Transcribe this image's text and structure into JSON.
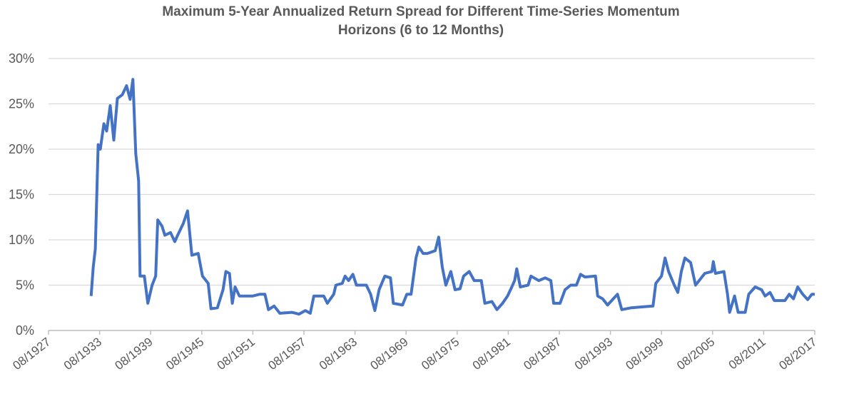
{
  "chart_data": {
    "type": "line",
    "title": "Maximum 5-Year Annualized Return Spread for Different Time-Series Momentum",
    "subtitle": "Horizons (6 to 12 Months)",
    "x": [
      "08/1932",
      "11/1932",
      "02/1933",
      "06/1933",
      "09/1933",
      "02/1934",
      "06/1934",
      "11/1934",
      "04/1935",
      "09/1935",
      "04/1936",
      "10/1936",
      "03/1937",
      "07/1937",
      "11/1937",
      "03/1938",
      "05/1938",
      "11/1938",
      "04/1939",
      "10/1939",
      "03/1940",
      "06/1940",
      "12/1940",
      "04/1941",
      "12/1941",
      "06/1942",
      "10/1942",
      "06/1943",
      "12/1943",
      "06/1944",
      "03/1945",
      "09/1945",
      "05/1946",
      "09/1946",
      "06/1947",
      "02/1948",
      "06/1948",
      "11/1948",
      "03/1949",
      "07/1949",
      "01/1950",
      "08/1951",
      "06/1952",
      "01/1953",
      "06/1953",
      "02/1954",
      "10/1954",
      "03/1956",
      "01/1957",
      "10/1957",
      "05/1958",
      "10/1958",
      "12/1959",
      "05/1960",
      "02/1961",
      "05/1961",
      "02/1962",
      "06/1962",
      "11/1962",
      "05/1963",
      "10/1963",
      "12/1964",
      "06/1965",
      "12/1965",
      "06/1966",
      "02/1967",
      "10/1967",
      "02/1968",
      "03/1969",
      "09/1969",
      "03/1970",
      "10/1970",
      "02/1971",
      "08/1971",
      "02/1972",
      "01/1973",
      "06/1973",
      "11/1973",
      "04/1974",
      "11/1974",
      "05/1975",
      "12/1975",
      "05/1976",
      "01/1977",
      "08/1977",
      "06/1978",
      "11/1978",
      "09/1979",
      "04/1980",
      "12/1980",
      "07/1981",
      "01/1982",
      "05/1982",
      "08/1982",
      "01/1983",
      "12/1983",
      "04/1984",
      "03/1985",
      "12/1985",
      "08/1986",
      "12/1986",
      "09/1987",
      "04/1988",
      "12/1988",
      "08/1989",
      "02/1990",
      "08/1990",
      "11/1991",
      "02/1992",
      "09/1992",
      "04/1993",
      "12/1993",
      "06/1994",
      "12/1994",
      "01/1996",
      "04/1997",
      "08/1998",
      "12/1998",
      "08/1999",
      "01/2000",
      "06/2000",
      "02/2001",
      "07/2001",
      "12/2001",
      "05/2002",
      "01/2003",
      "08/2003",
      "09/2004",
      "07/2005",
      "09/2005",
      "12/2005",
      "12/2006",
      "05/2007",
      "08/2007",
      "03/2008",
      "08/2008",
      "06/2009",
      "11/2009",
      "08/2010",
      "05/2011",
      "10/2011",
      "05/2012",
      "11/2012",
      "02/2014",
      "08/2014",
      "02/2015",
      "08/2015",
      "03/2016",
      "10/2016",
      "04/2017",
      "08/2017"
    ],
    "series": [
      {
        "name": "Return spread",
        "color": "#4472c4",
        "values": [
          3.8,
          7,
          9,
          20.5,
          20,
          22.8,
          22,
          24.8,
          21,
          25.6,
          26,
          27,
          25.5,
          27.7,
          19.5,
          16.5,
          6,
          6,
          3,
          5,
          6,
          12.2,
          11.5,
          10.5,
          10.8,
          9.8,
          10.5,
          11.8,
          13.2,
          8.3,
          8.5,
          6,
          5.2,
          2.4,
          2.5,
          4.5,
          6.5,
          6.3,
          3,
          4.8,
          3.8,
          3.8,
          4,
          4,
          2.3,
          2.7,
          1.9,
          2,
          1.8,
          2.2,
          1.9,
          3.8,
          3.8,
          3,
          4,
          5,
          5.2,
          6,
          5.5,
          6.2,
          5,
          5,
          4,
          2.2,
          4.5,
          6,
          5.8,
          3,
          2.8,
          4,
          4,
          8,
          9.2,
          8.5,
          8.5,
          8.8,
          10.3,
          7,
          5,
          6.5,
          4.5,
          4.6,
          6,
          6.5,
          5.5,
          5.5,
          3,
          3.2,
          2.3,
          3,
          3.8,
          4.8,
          5.5,
          6.8,
          4.8,
          5,
          6,
          5.5,
          5.8,
          5.5,
          3,
          3,
          4.5,
          5,
          5,
          6.2,
          5.9,
          6,
          3.8,
          3.5,
          2.8,
          3.5,
          4,
          2.3,
          2.5,
          2.6,
          2.7,
          5.2,
          6,
          8,
          6.5,
          5,
          4.2,
          6.5,
          8,
          7.5,
          5,
          6.3,
          6.5,
          7.6,
          6.3,
          6.5,
          4,
          2,
          3.8,
          2,
          2,
          4,
          4.8,
          4.5,
          3.8,
          4.2,
          3.3,
          3.3,
          4,
          3.5,
          4.8,
          4,
          3.4,
          4,
          4
        ]
      }
    ],
    "xlim": [
      "08/1927",
      "08/2017"
    ],
    "xticks": [
      "08/1927",
      "08/1933",
      "08/1939",
      "08/1945",
      "08/1951",
      "08/1957",
      "08/1963",
      "08/1969",
      "08/1975",
      "08/1981",
      "08/1987",
      "08/1993",
      "08/1999",
      "08/2005",
      "08/2011",
      "08/2017"
    ],
    "ylim": [
      0,
      30
    ],
    "yticks": [
      {
        "value": 0,
        "label": "0%"
      },
      {
        "value": 5,
        "label": "5%"
      },
      {
        "value": 10,
        "label": "10%"
      },
      {
        "value": 15,
        "label": "15%"
      },
      {
        "value": 20,
        "label": "20%"
      },
      {
        "value": 25,
        "label": "25%"
      },
      {
        "value": 30,
        "label": "30%"
      }
    ],
    "grid": true
  }
}
